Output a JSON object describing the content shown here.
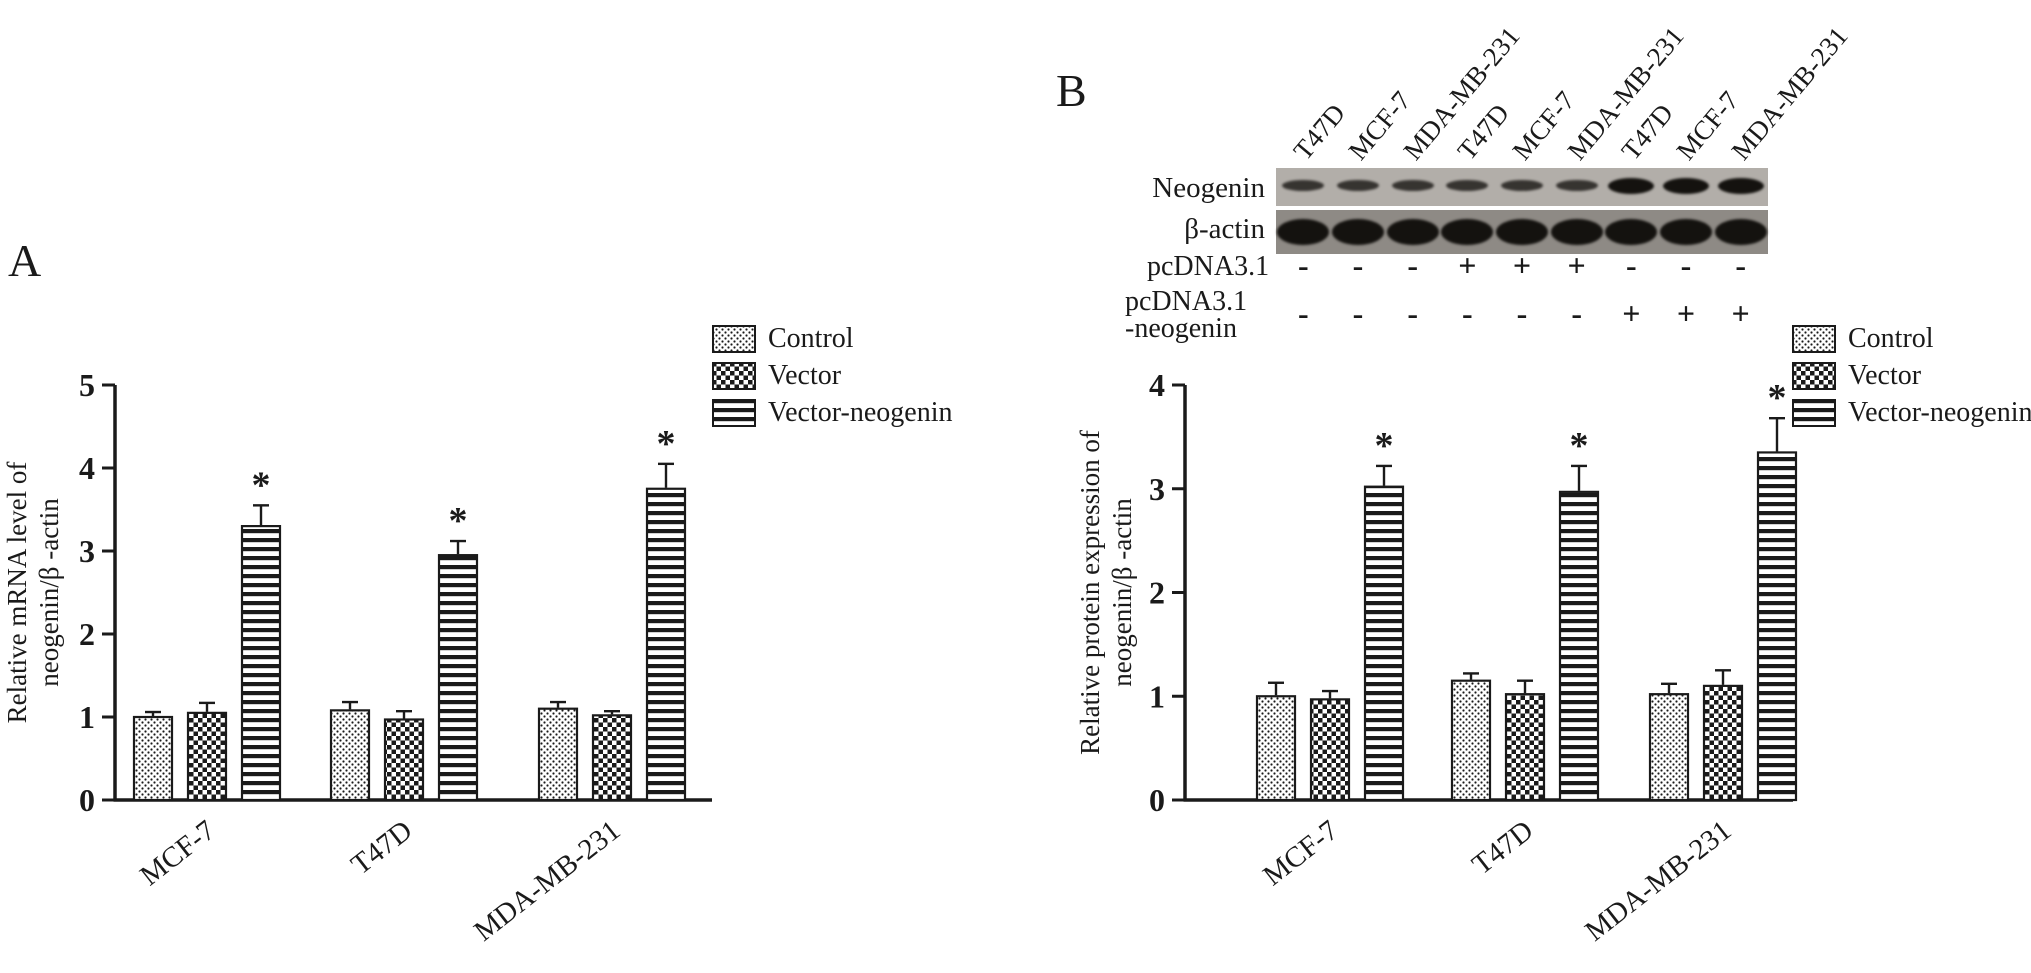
{
  "panels": {
    "a_label": "A",
    "b_label": "B"
  },
  "colors": {
    "ink": "#1a1a1a",
    "blot_neogenin_bg": "#b2aea9",
    "blot_actin_bg": "#8e8a85",
    "band": "#14120f"
  },
  "chart_data": [
    {
      "type": "bar",
      "panel": "A",
      "ylabel_lines": [
        "Relative mRNA level of",
        "neogenin/β -actin"
      ],
      "categories": [
        "MCF-7",
        "T47D",
        "MDA-MB-231"
      ],
      "series": [
        {
          "name": "Control",
          "pattern": "stipple",
          "values": [
            1.0,
            1.08,
            1.1
          ],
          "errors": [
            0.06,
            0.1,
            0.08
          ],
          "sig": [
            false,
            false,
            false
          ]
        },
        {
          "name": "Vector",
          "pattern": "checker",
          "values": [
            1.05,
            0.97,
            1.02
          ],
          "errors": [
            0.12,
            0.1,
            0.05
          ],
          "sig": [
            false,
            false,
            false
          ]
        },
        {
          "name": "Vector-neogenin",
          "pattern": "hlines",
          "values": [
            3.3,
            2.95,
            3.75
          ],
          "errors": [
            0.25,
            0.17,
            0.3
          ],
          "sig": [
            true,
            true,
            true
          ]
        }
      ],
      "ylim": [
        0,
        5
      ],
      "yticks": [
        0,
        1,
        2,
        3,
        4,
        5
      ],
      "sig_marker": "*",
      "grid": false,
      "legend_position": "upper-right"
    },
    {
      "type": "bar",
      "panel": "B",
      "ylabel_lines": [
        "Relative protein expression of",
        "neogenin/β -actin"
      ],
      "categories": [
        "MCF-7",
        "T47D",
        "MDA-MB-231"
      ],
      "series": [
        {
          "name": "Control",
          "pattern": "stipple",
          "values": [
            1.0,
            1.15,
            1.02
          ],
          "errors": [
            0.13,
            0.07,
            0.1
          ],
          "sig": [
            false,
            false,
            false
          ]
        },
        {
          "name": "Vector",
          "pattern": "checker",
          "values": [
            0.97,
            1.02,
            1.1
          ],
          "errors": [
            0.08,
            0.13,
            0.15
          ],
          "sig": [
            false,
            false,
            false
          ]
        },
        {
          "name": "Vector-neogenin",
          "pattern": "hlines",
          "values": [
            3.02,
            2.97,
            3.35
          ],
          "errors": [
            0.2,
            0.25,
            0.33
          ],
          "sig": [
            true,
            true,
            true
          ]
        }
      ],
      "ylim": [
        0,
        4
      ],
      "yticks": [
        0,
        1,
        2,
        3,
        4
      ],
      "sig_marker": "*",
      "grid": false,
      "legend_position": "upper-right"
    }
  ],
  "blot": {
    "lane_labels": [
      "T47D",
      "MCF-7",
      "MDA-MB-231",
      "T47D",
      "MCF-7",
      "MDA-MB-231",
      "T47D",
      "MCF-7",
      "MDA-MB-231"
    ],
    "protein_rows": [
      {
        "label": "Neogenin",
        "band_levels": [
          0.5,
          0.5,
          0.5,
          0.5,
          0.5,
          0.5,
          1,
          1,
          1
        ]
      },
      {
        "label": "β-actin",
        "band_levels": [
          1,
          1,
          1,
          1,
          1,
          1,
          1,
          1,
          1
        ]
      }
    ],
    "treatment_rows": [
      {
        "label_lines": [
          "pcDNA3.1"
        ],
        "signs": [
          "-",
          "-",
          "-",
          "+",
          "+",
          "+",
          "-",
          "-",
          "-"
        ]
      },
      {
        "label_lines": [
          "pcDNA3.1",
          "-neogenin"
        ],
        "signs": [
          "-",
          "-",
          "-",
          "-",
          "-",
          "-",
          "+",
          "+",
          "+"
        ]
      }
    ]
  }
}
